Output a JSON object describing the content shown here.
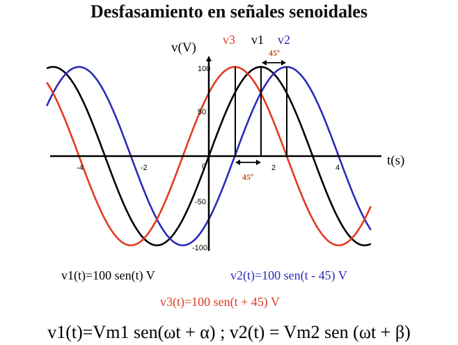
{
  "title": "Desfasamiento en señales senoidales",
  "axes": {
    "y_label": "v(V)",
    "x_label": "t(s)",
    "y_ticks": [
      "100",
      "50",
      "-50",
      "-100"
    ],
    "x_ticks": [
      "-4",
      "-2",
      "0",
      "2",
      "4"
    ]
  },
  "legend_labels": {
    "v3": "v3",
    "v1": "v1",
    "v2": "v2"
  },
  "phase_labels": {
    "top": "45º",
    "bottom": "45º"
  },
  "equations": {
    "v1": "v1(t)=100 sen(t) V",
    "v2": "v2(t)=100 sen(t - 45) V",
    "v3": "v3(t)=100 sen(t + 45) V",
    "general": "v1(t)=Vm1 sen(ωt + α) ; v2(t) = Vm2 sen (ωt + β)"
  },
  "colors": {
    "v1": "#000000",
    "v2": "#2a2ab8",
    "v3": "#e03a1e",
    "annotation": "#c8501a"
  },
  "chart_data": {
    "type": "line",
    "xlim": [
      -4.9,
      4.9
    ],
    "ylim": [
      -100,
      100
    ],
    "series": [
      {
        "name": "v1",
        "amplitude": 100,
        "phase_deg": 0
      },
      {
        "name": "v2",
        "amplitude": 100,
        "phase_deg": -45
      },
      {
        "name": "v3",
        "amplitude": 100,
        "phase_deg": 45
      }
    ]
  }
}
